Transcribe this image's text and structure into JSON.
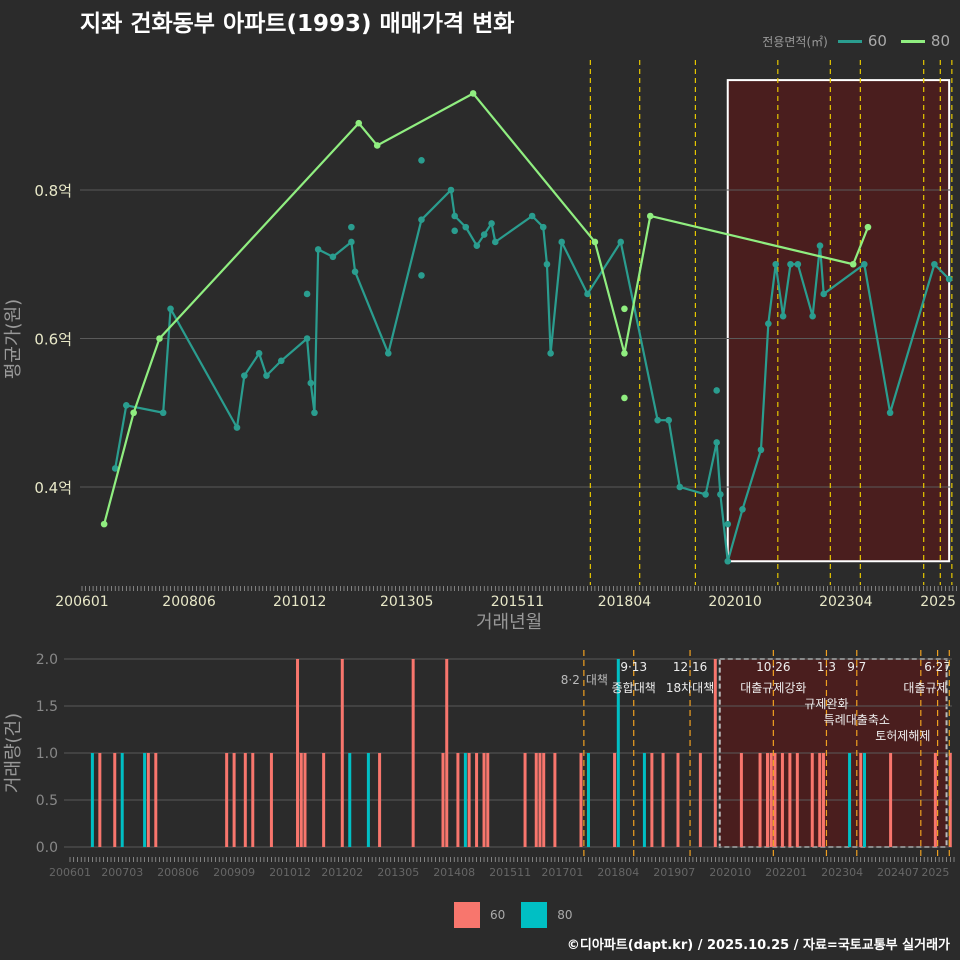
{
  "title": "지좌 건화동부 아파트(1993) 매매가격 변화",
  "footer": "©디아파트(dapt.kr) / 2025.10.25 / 자료=국토교통부 실거래가",
  "colors": {
    "s60_line": "#2a9d8f",
    "s80_line": "#90ee80",
    "bar60": "#f8766d",
    "bar80": "#00bfc4",
    "event": "#e6c700",
    "event_bottom": "#f0a020",
    "highlight": "#4a1e1e"
  },
  "chart_data": [
    {
      "type": "line",
      "title": "지좌 건화동부 아파트(1993) 매매가격 변화",
      "xlabel": "거래년월",
      "ylabel": "평균가(원)",
      "legend_title": "전용면적(㎡)",
      "legend_position": "top-right",
      "ylim": [
        0.272,
        0.99
      ],
      "y_ticks": [
        {
          "v": 0.4,
          "label": "0.4억"
        },
        {
          "v": 0.6,
          "label": "0.6억"
        },
        {
          "v": 0.8,
          "label": "0.8억"
        }
      ],
      "x_ticks": [
        "200601",
        "200806",
        "201012",
        "201305",
        "201511",
        "201804",
        "202010",
        "202304",
        "2025"
      ],
      "highlight": {
        "from": "202008",
        "to": "202508",
        "ymin": 0.3,
        "ymax": 0.948
      },
      "series": [
        {
          "name": "60",
          "points": [
            [
              "200610",
              0.425
            ],
            [
              "200701",
              0.51
            ],
            [
              "200711",
              0.5
            ],
            [
              "200801",
              0.64
            ],
            [
              "200907",
              0.48
            ],
            [
              "200909",
              0.55
            ],
            [
              "201001",
              0.58
            ],
            [
              "201003",
              0.55
            ],
            [
              "201007",
              0.57
            ],
            [
              "201102",
              0.6
            ],
            [
              "201103",
              0.54
            ],
            [
              "201104",
              0.5
            ],
            [
              "201105",
              0.72
            ],
            [
              "201109",
              0.71
            ],
            [
              "201202",
              0.73
            ],
            [
              "201203",
              0.69
            ],
            [
              "201212",
              0.58
            ],
            [
              "201309",
              0.76
            ],
            [
              "201405",
              0.8
            ],
            [
              "201406",
              0.765
            ],
            [
              "201409",
              0.75
            ],
            [
              "201412",
              0.725
            ],
            [
              "201502",
              0.74
            ],
            [
              "201504",
              0.755
            ],
            [
              "201505",
              0.73
            ],
            [
              "201603",
              0.765
            ],
            [
              "201606",
              0.75
            ],
            [
              "201607",
              0.7
            ],
            [
              "201608",
              0.58
            ],
            [
              "201611",
              0.73
            ],
            [
              "201706",
              0.66
            ],
            [
              "201803",
              0.73
            ],
            [
              "201901",
              0.49
            ],
            [
              "201904",
              0.49
            ],
            [
              "201907",
              0.4
            ],
            [
              "202002",
              0.39
            ],
            [
              "202005",
              0.46
            ],
            [
              "202006",
              0.39
            ],
            [
              "202008",
              0.3
            ],
            [
              "202012",
              0.37
            ],
            [
              "202105",
              0.45
            ],
            [
              "202107",
              0.62
            ],
            [
              "202109",
              0.7
            ],
            [
              "202111",
              0.63
            ],
            [
              "202201",
              0.7
            ],
            [
              "202203",
              0.7
            ],
            [
              "202207",
              0.63
            ],
            [
              "202209",
              0.725
            ],
            [
              "202210",
              0.66
            ],
            [
              "202309",
              0.7
            ],
            [
              "202404",
              0.5
            ],
            [
              "202504",
              0.7
            ],
            [
              "202508",
              0.68
            ]
          ],
          "extra_points": [
            [
              "201309",
              0.84
            ],
            [
              "201309",
              0.685
            ],
            [
              "201102",
              0.66
            ],
            [
              "201202",
              0.75
            ],
            [
              "201406",
              0.745
            ],
            [
              "202005",
              0.53
            ],
            [
              "202008",
              0.35
            ]
          ]
        },
        {
          "name": "80",
          "points": [
            [
              "200607",
              0.35
            ],
            [
              "200703",
              0.5
            ],
            [
              "200710",
              0.6
            ],
            [
              "201204",
              0.89
            ],
            [
              "201209",
              0.86
            ],
            [
              "201411",
              0.93
            ],
            [
              "201708",
              0.73
            ],
            [
              "201804",
              0.58
            ],
            [
              "201811",
              0.765
            ],
            [
              "202306",
              0.7
            ],
            [
              "202310",
              0.75
            ]
          ],
          "extra_points": [
            [
              "201804",
              0.64
            ],
            [
              "201804",
              0.52
            ]
          ]
        }
      ],
      "events": [
        {
          "date": "2017-08-02",
          "label": "8·2",
          "name": "대책"
        },
        {
          "date": "2018-09-13",
          "label": "9·13",
          "name": "종합대책"
        },
        {
          "date": "2019-12-16",
          "label": "12·16",
          "name": "18차대책"
        },
        {
          "date": "2021-10-26",
          "label": "10·26",
          "name": "대출규제강화"
        },
        {
          "date": "2023-01-03",
          "label": "1·3",
          "name": "규제완화"
        },
        {
          "date": "2023-09-07",
          "label": "9·7",
          "name": "특례대출축소"
        },
        {
          "date": "2025-02-12",
          "label": "",
          "name": "토허제해제"
        },
        {
          "date": "2025-06-27",
          "label": "6·27",
          "name": "대출규제"
        },
        {
          "date": "2025-10-01",
          "label": "",
          "name": ""
        }
      ]
    },
    {
      "type": "bar",
      "xlabel": "",
      "ylabel": "거래량(건)",
      "ylim": [
        0,
        2
      ],
      "y_ticks": [
        "0.0",
        "0.5",
        "1.0",
        "1.5",
        "2.0"
      ],
      "x_ticks": [
        "200601",
        "200703",
        "200806",
        "200909",
        "201012",
        "201202",
        "201305",
        "201408",
        "201511",
        "201701",
        "201804",
        "201907",
        "202010",
        "202201",
        "202304",
        "202407",
        "2025"
      ],
      "legend": [
        "60",
        "80"
      ],
      "legend_position": "bottom",
      "highlight": {
        "from": "202008",
        "to": "202508"
      },
      "series": [
        {
          "name": "60",
          "bars": [
            [
              "200609",
              1
            ],
            [
              "200701",
              1
            ],
            [
              "200710",
              1
            ],
            [
              "200712",
              1
            ],
            [
              "200907",
              1
            ],
            [
              "200909",
              1
            ],
            [
              "200912",
              1
            ],
            [
              "201002",
              1
            ],
            [
              "201007",
              1
            ],
            [
              "201102",
              2
            ],
            [
              "201103",
              1
            ],
            [
              "201104",
              1
            ],
            [
              "201109",
              1
            ],
            [
              "201202",
              2
            ],
            [
              "201212",
              1
            ],
            [
              "201309",
              2
            ],
            [
              "201405",
              1
            ],
            [
              "201406",
              2
            ],
            [
              "201409",
              1
            ],
            [
              "201412",
              1
            ],
            [
              "201502",
              1
            ],
            [
              "201504",
              1
            ],
            [
              "201505",
              1
            ],
            [
              "201603",
              1
            ],
            [
              "201606",
              1
            ],
            [
              "201607",
              1
            ],
            [
              "201608",
              1
            ],
            [
              "201611",
              1
            ],
            [
              "201706",
              1
            ],
            [
              "201803",
              1
            ],
            [
              "201901",
              1
            ],
            [
              "201904",
              1
            ],
            [
              "201908",
              1
            ],
            [
              "202002",
              1
            ],
            [
              "202006",
              2
            ],
            [
              "202101",
              1
            ],
            [
              "202106",
              1
            ],
            [
              "202108",
              1
            ],
            [
              "202109",
              1
            ],
            [
              "202110",
              1
            ],
            [
              "202112",
              1
            ],
            [
              "202202",
              1
            ],
            [
              "202204",
              1
            ],
            [
              "202208",
              1
            ],
            [
              "202210",
              1
            ],
            [
              "202211",
              1
            ],
            [
              "202309",
              1
            ],
            [
              "202405",
              1
            ],
            [
              "202505",
              1
            ],
            [
              "202509",
              1
            ]
          ]
        },
        {
          "name": "80",
          "bars": [
            [
              "200607",
              1
            ],
            [
              "200703",
              1
            ],
            [
              "200709",
              1
            ],
            [
              "201204",
              1
            ],
            [
              "201209",
              1
            ],
            [
              "201411",
              1
            ],
            [
              "201708",
              1
            ],
            [
              "201804",
              2
            ],
            [
              "201811",
              1
            ],
            [
              "202306",
              1
            ],
            [
              "202310",
              1
            ]
          ]
        }
      ]
    }
  ]
}
